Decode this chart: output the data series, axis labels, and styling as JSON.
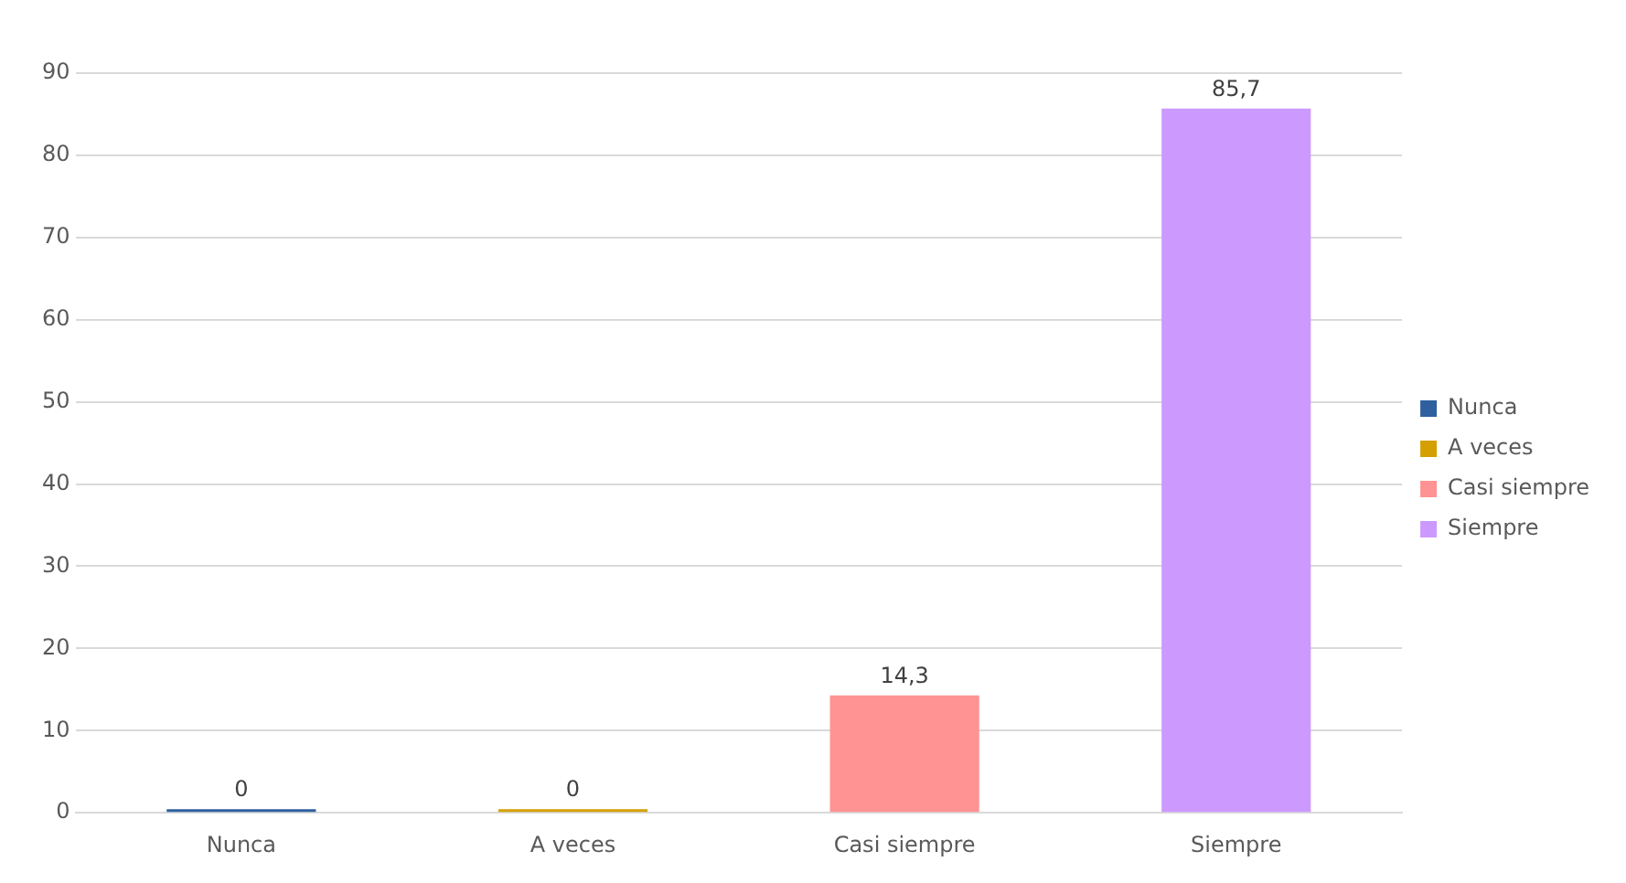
{
  "chart_data": {
    "type": "bar",
    "categories": [
      "Nunca",
      "A veces",
      "Casi siempre",
      "Siempre"
    ],
    "series": [
      {
        "name": "Nunca",
        "color": "#2e5f9e",
        "values": [
          0,
          null,
          null,
          null
        ],
        "value_labels": [
          "0",
          null,
          null,
          null
        ]
      },
      {
        "name": "A veces",
        "color": "#d49f00",
        "values": [
          null,
          0,
          null,
          null
        ],
        "value_labels": [
          null,
          "0",
          null,
          null
        ]
      },
      {
        "name": "Casi siempre",
        "color": "#ff9393",
        "values": [
          null,
          null,
          14.3,
          null
        ],
        "value_labels": [
          null,
          null,
          "14,3",
          null
        ]
      },
      {
        "name": "Siempre",
        "color": "#cc99ff",
        "values": [
          null,
          null,
          null,
          85.7
        ],
        "value_labels": [
          null,
          null,
          null,
          "85,7"
        ]
      }
    ],
    "ylim": [
      0,
      90
    ],
    "yticks": [
      0,
      10,
      20,
      30,
      40,
      50,
      60,
      70,
      80,
      90
    ],
    "grid": "y",
    "legend": "right"
  }
}
